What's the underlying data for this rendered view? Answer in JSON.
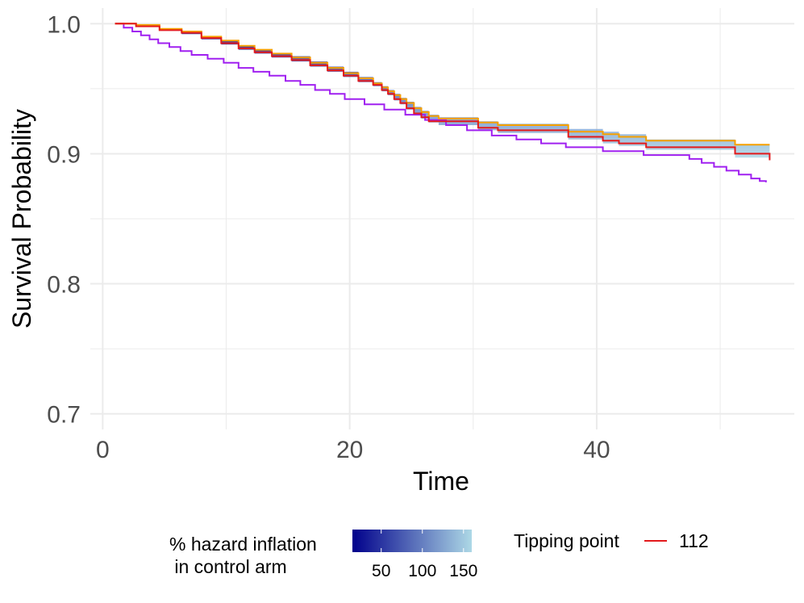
{
  "chart_data": {
    "type": "line",
    "xlabel": "Time",
    "ylabel": "Survival Probability",
    "xlim": [
      -1,
      56
    ],
    "ylim": [
      0.688,
      1.012
    ],
    "x_ticks": [
      0,
      20,
      40
    ],
    "x_tick_labels": [
      "0",
      "20",
      "40"
    ],
    "x_minor_gridlines": [
      10,
      30,
      50
    ],
    "y_ticks": [
      0.7,
      0.8,
      0.9,
      1.0
    ],
    "y_tick_labels": [
      "0.7",
      "0.8",
      "0.9",
      "1.0"
    ],
    "y_minor_gridlines": [
      0.75,
      0.85,
      0.95
    ],
    "grid": true,
    "band": {
      "x": [
        1,
        2.7,
        4.6,
        6.4,
        8,
        9.6,
        11,
        12.3,
        13.7,
        15.3,
        16.8,
        18.2,
        19.5,
        20.7,
        21.9,
        22.6,
        23.1,
        23.6,
        24.1,
        24.6,
        25.2,
        25.8,
        26.4,
        27.2,
        30.4,
        32,
        37.7,
        40.5,
        41.8,
        44,
        51.2,
        54
      ],
      "upper": [
        1,
        0.999,
        0.996,
        0.994,
        0.99,
        0.987,
        0.983,
        0.98,
        0.977,
        0.975,
        0.971,
        0.967,
        0.963,
        0.959,
        0.955,
        0.952,
        0.949,
        0.946,
        0.943,
        0.94,
        0.936,
        0.933,
        0.93,
        0.928,
        0.925,
        0.923,
        0.919,
        0.917,
        0.915,
        0.911,
        0.907,
        0.907
      ],
      "lower": [
        1,
        0.998,
        0.995,
        0.992,
        0.988,
        0.984,
        0.98,
        0.977,
        0.974,
        0.971,
        0.967,
        0.963,
        0.959,
        0.955,
        0.952,
        0.948,
        0.945,
        0.941,
        0.938,
        0.934,
        0.93,
        0.927,
        0.924,
        0.922,
        0.918,
        0.916,
        0.911,
        0.908,
        0.906,
        0.903,
        0.897,
        0.897
      ]
    },
    "series": [
      {
        "name": "112",
        "color": "#e31a1c",
        "x": [
          1,
          2.7,
          4.6,
          6.4,
          8,
          9.6,
          11,
          12.3,
          13.7,
          15.3,
          16.8,
          18.2,
          19.5,
          20.7,
          21.9,
          22.6,
          23.1,
          23.6,
          24.1,
          24.6,
          25.2,
          25.8,
          26.4,
          27.2,
          30.4,
          32,
          37.7,
          40.5,
          41.8,
          44,
          51.2,
          54
        ],
        "y": [
          1,
          0.998,
          0.995,
          0.993,
          0.989,
          0.985,
          0.981,
          0.978,
          0.975,
          0.972,
          0.968,
          0.964,
          0.96,
          0.956,
          0.953,
          0.949,
          0.946,
          0.942,
          0.939,
          0.935,
          0.931,
          0.928,
          0.925,
          0.925,
          0.92,
          0.918,
          0.913,
          0.91,
          0.908,
          0.905,
          0.9,
          0.895
        ]
      },
      {
        "color": "#f5a000",
        "x": [
          1,
          2.7,
          4.6,
          6.4,
          8,
          9.6,
          11,
          12.3,
          13.7,
          15.3,
          16.8,
          18.2,
          19.5,
          20.7,
          21.9,
          22.6,
          23.1,
          23.6,
          24.1,
          24.6,
          25.2,
          25.8,
          26.4,
          27.2,
          30.4,
          32,
          37.7,
          40.5,
          41.8,
          44,
          51.2,
          54
        ],
        "y": [
          1,
          0.999,
          0.996,
          0.994,
          0.99,
          0.987,
          0.983,
          0.98,
          0.977,
          0.974,
          0.97,
          0.966,
          0.962,
          0.958,
          0.954,
          0.951,
          0.948,
          0.945,
          0.942,
          0.939,
          0.935,
          0.932,
          0.929,
          0.927,
          0.924,
          0.922,
          0.917,
          0.915,
          0.913,
          0.91,
          0.907,
          0.907
        ]
      },
      {
        "color": "#a020f0",
        "x": [
          1,
          1.7,
          2.4,
          3.1,
          3.8,
          4.5,
          5.4,
          6.3,
          7.2,
          8.5,
          9.8,
          11,
          12.2,
          13.5,
          14.8,
          16,
          17.2,
          18.4,
          19.6,
          21.2,
          22.8,
          24.5,
          26.1,
          27.8,
          29.5,
          31.5,
          33.5,
          35.5,
          37.5,
          40.5,
          43.8,
          47.5,
          48.5,
          49.5,
          50.5,
          51.5,
          52.5,
          53.2,
          53.7
        ],
        "y": [
          1,
          0.997,
          0.994,
          0.991,
          0.988,
          0.985,
          0.982,
          0.979,
          0.976,
          0.973,
          0.97,
          0.966,
          0.963,
          0.96,
          0.956,
          0.953,
          0.949,
          0.946,
          0.942,
          0.938,
          0.934,
          0.93,
          0.926,
          0.922,
          0.918,
          0.914,
          0.911,
          0.908,
          0.905,
          0.902,
          0.899,
          0.896,
          0.893,
          0.89,
          0.887,
          0.884,
          0.881,
          0.879,
          0.878
        ]
      }
    ],
    "legend": {
      "placement": "bottom",
      "gradient_title": "% hazard inflation\n in control arm",
      "gradient_colors": [
        "#00008b",
        "#add8e6"
      ],
      "gradient_range": [
        15,
        160
      ],
      "gradient_ticks": [
        50,
        100,
        150
      ],
      "gradient_tick_labels": [
        "50",
        "100",
        "150"
      ],
      "line_title": "Tipping point",
      "line_label": "112",
      "line_color": "#e31a1c"
    }
  }
}
